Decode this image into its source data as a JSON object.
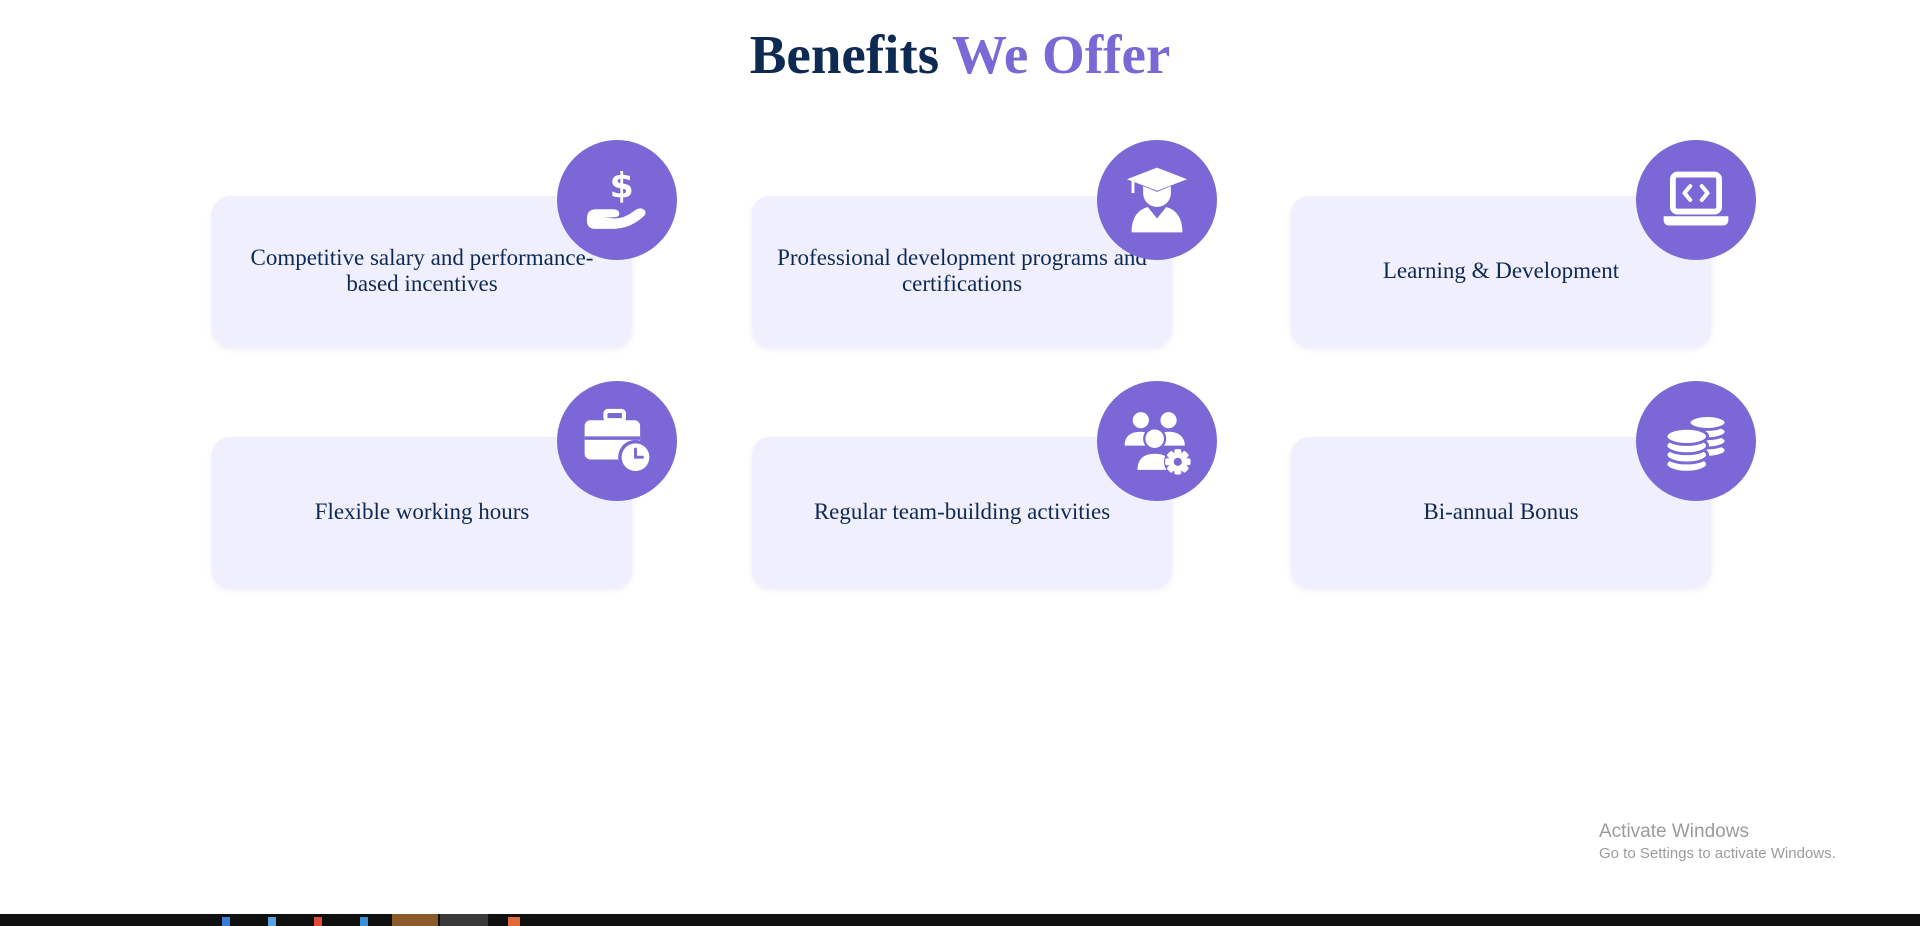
{
  "heading": {
    "main": "Benefits",
    "accent": "We Offer"
  },
  "benefits": [
    {
      "text": "Competitive salary and performance-based incentives",
      "icon": "hand-dollar-icon"
    },
    {
      "text": "Professional development programs and certifications",
      "icon": "graduate-icon"
    },
    {
      "text": "Learning & Development",
      "icon": "laptop-code-icon"
    },
    {
      "text": "Flexible working hours",
      "icon": "briefcase-clock-icon"
    },
    {
      "text": "Regular team-building activities",
      "icon": "team-gear-icon"
    },
    {
      "text": "Bi-annual Bonus",
      "icon": "coins-icon"
    }
  ],
  "colors": {
    "accent": "#7b68d6",
    "navy": "#0f2a52",
    "card": "#f0effd"
  },
  "watermark": {
    "title": "Activate Windows",
    "subtitle": "Go to Settings to activate Windows."
  }
}
